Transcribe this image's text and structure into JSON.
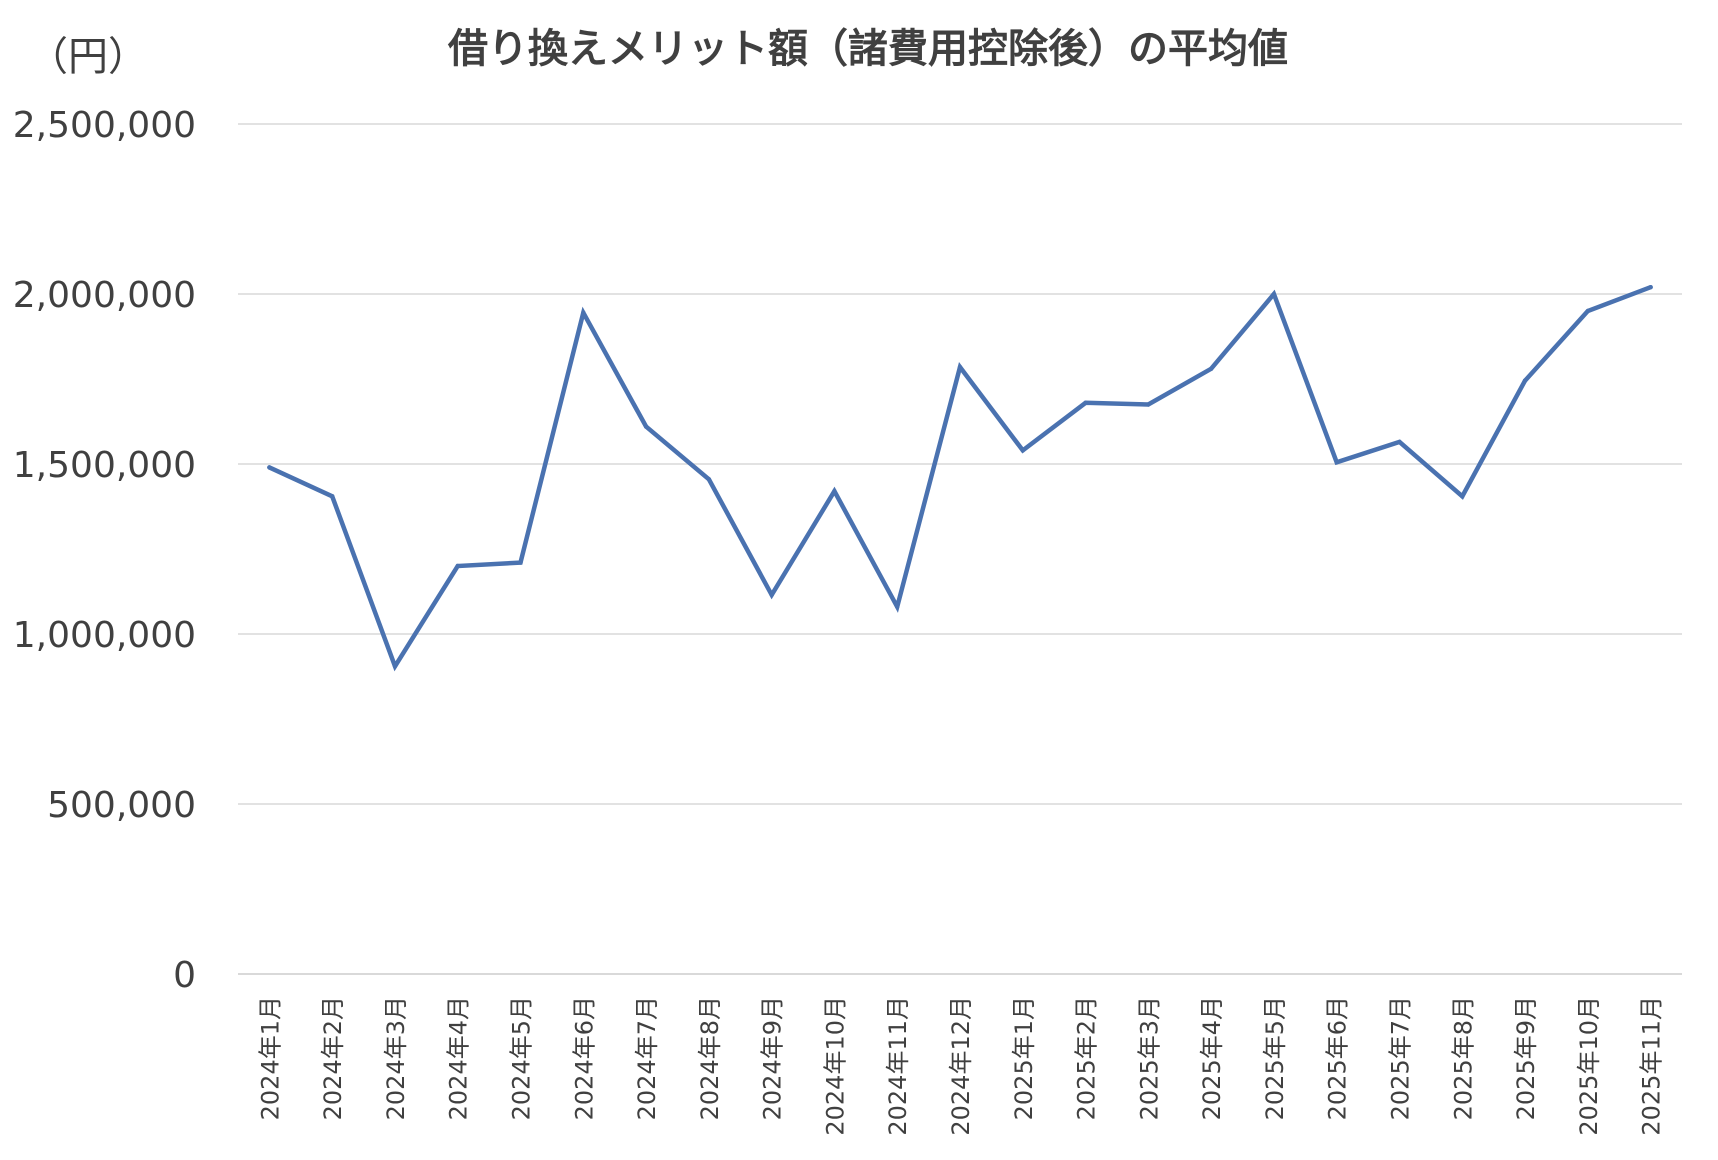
{
  "chart_data": {
    "type": "line",
    "title": "借り換えメリット額（諸費用控除後）の平均値",
    "y_unit_label": "（円）",
    "xlabel": "",
    "ylabel": "",
    "ylim": [
      0,
      2500000
    ],
    "y_ticks": [
      0,
      500000,
      1000000,
      1500000,
      2000000,
      2500000
    ],
    "y_tick_labels": [
      "0",
      "500,000",
      "1,000,000",
      "1,500,000",
      "2,000,000",
      "2,500,000"
    ],
    "grid": true,
    "legend": "none",
    "categories": [
      "2024年1月",
      "2024年2月",
      "2024年3月",
      "2024年4月",
      "2024年5月",
      "2024年6月",
      "2024年7月",
      "2024年8月",
      "2024年9月",
      "2024年10月",
      "2024年11月",
      "2024年12月",
      "2025年1月",
      "2025年2月",
      "2025年3月",
      "2025年4月",
      "2025年5月",
      "2025年6月",
      "2025年7月",
      "2025年8月",
      "2025年9月",
      "2025年10月",
      "2025年11月"
    ],
    "series": [
      {
        "color": "#4a72b0",
        "values": [
          1490000,
          1405000,
          905000,
          1200000,
          1210000,
          1945000,
          1610000,
          1455000,
          1115000,
          1420000,
          1080000,
          1785000,
          1540000,
          1680000,
          1675000,
          1780000,
          2000000,
          1505000,
          1565000,
          1405000,
          1745000,
          1950000,
          2020000
        ]
      }
    ]
  }
}
